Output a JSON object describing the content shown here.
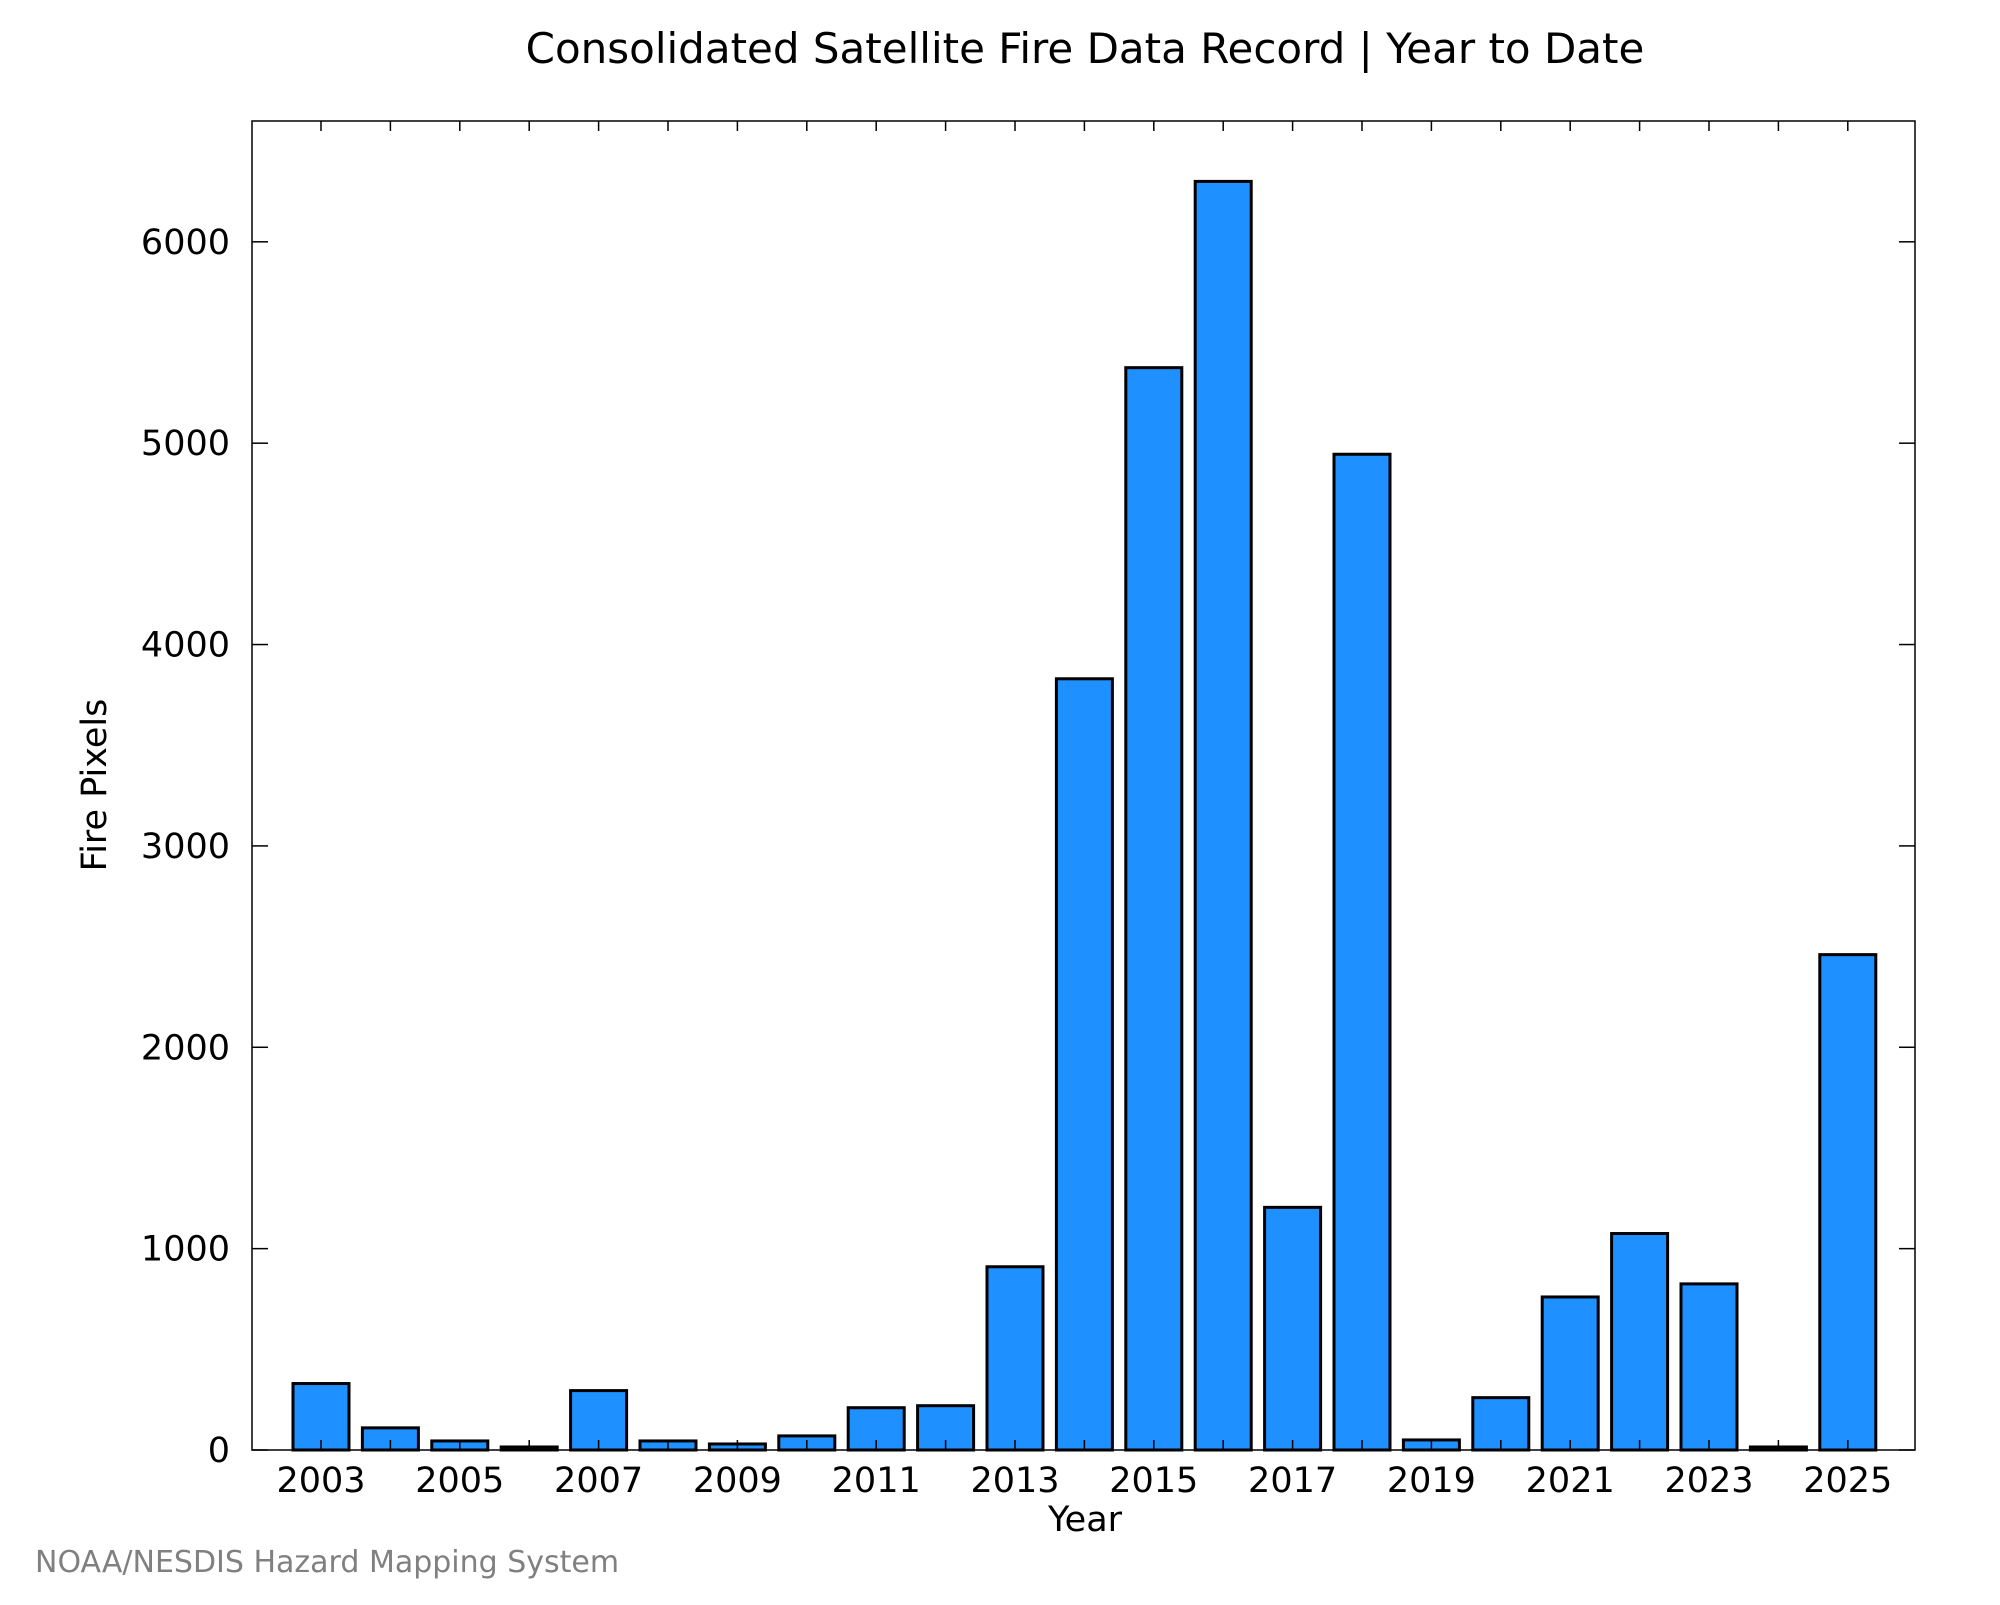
{
  "chart_data": {
    "type": "bar",
    "title": "Consolidated Satellite Fire Data Record | Year to Date",
    "xlabel": "Year",
    "ylabel": "Fire Pixels",
    "categories": [
      2003,
      2004,
      2005,
      2006,
      2007,
      2008,
      2009,
      2010,
      2011,
      2012,
      2013,
      2014,
      2015,
      2016,
      2017,
      2018,
      2019,
      2020,
      2021,
      2022,
      2023,
      2024,
      2025
    ],
    "values": [
      330,
      110,
      45,
      15,
      295,
      45,
      30,
      70,
      210,
      220,
      910,
      3830,
      5375,
      6300,
      1205,
      4945,
      50,
      260,
      760,
      1075,
      825,
      15,
      2460
    ],
    "x_tick_labels": [
      "2003",
      "2005",
      "2007",
      "2009",
      "2011",
      "2013",
      "2015",
      "2017",
      "2019",
      "2021",
      "2023",
      "2025"
    ],
    "y_ticks": [
      0,
      1000,
      2000,
      3000,
      4000,
      5000,
      6000
    ],
    "ylim": [
      0,
      6600
    ],
    "bar_color": "#1e90ff",
    "bar_edge_color": "#000000",
    "grid": false,
    "legend": "none"
  },
  "credit": "NOAA/NESDIS Hazard Mapping System"
}
